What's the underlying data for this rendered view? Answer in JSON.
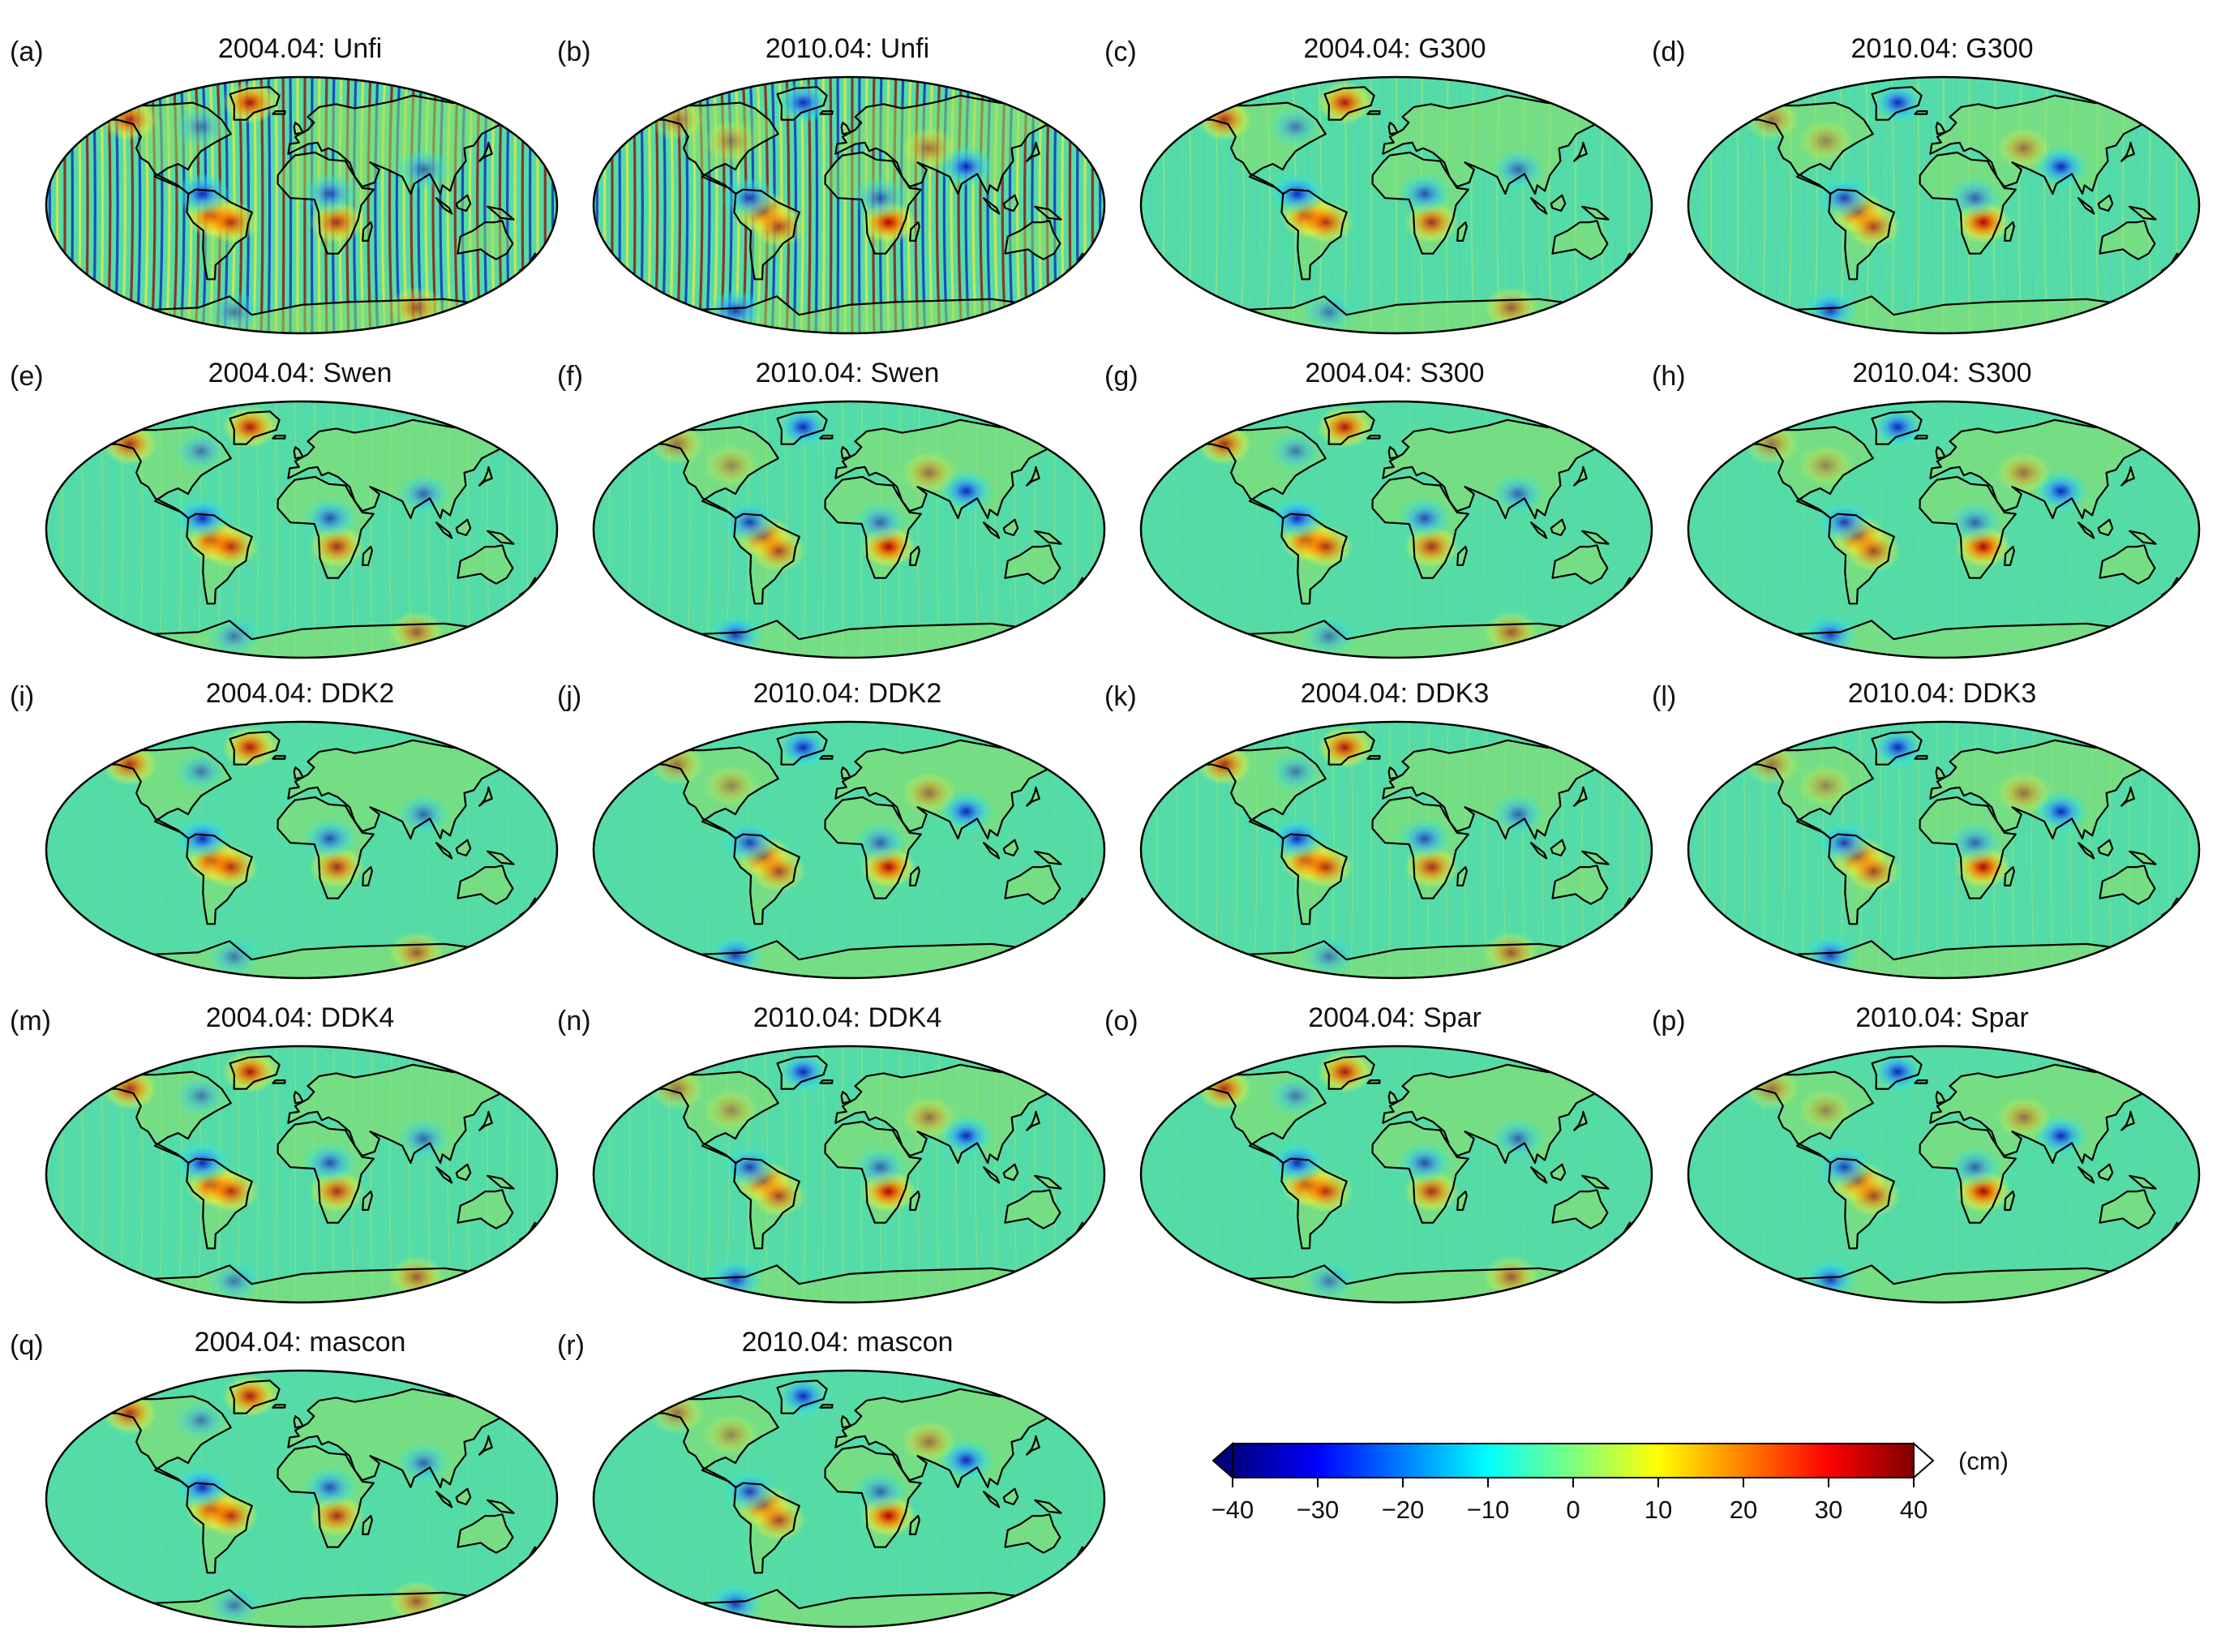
{
  "figure": {
    "panels": [
      {
        "letter": "(a)",
        "title": "2004.04: Unfi",
        "filter": "Unfi",
        "epoch": "2004.04",
        "noise_stripes": "strong"
      },
      {
        "letter": "(b)",
        "title": "2010.04: Unfi",
        "filter": "Unfi",
        "epoch": "2010.04",
        "noise_stripes": "strong"
      },
      {
        "letter": "(c)",
        "title": "2004.04: G300",
        "filter": "G300",
        "epoch": "2004.04",
        "noise_stripes": "moderate"
      },
      {
        "letter": "(d)",
        "title": "2010.04: G300",
        "filter": "G300",
        "epoch": "2010.04",
        "noise_stripes": "moderate"
      },
      {
        "letter": "(e)",
        "title": "2004.04: Swen",
        "filter": "Swen",
        "epoch": "2004.04",
        "noise_stripes": "weak"
      },
      {
        "letter": "(f)",
        "title": "2010.04: Swen",
        "filter": "Swen",
        "epoch": "2010.04",
        "noise_stripes": "weak"
      },
      {
        "letter": "(g)",
        "title": "2004.04: S300",
        "filter": "S300",
        "epoch": "2004.04",
        "noise_stripes": "none"
      },
      {
        "letter": "(h)",
        "title": "2010.04: S300",
        "filter": "S300",
        "epoch": "2010.04",
        "noise_stripes": "none"
      },
      {
        "letter": "(i)",
        "title": "2004.04: DDK2",
        "filter": "DDK2",
        "epoch": "2004.04",
        "noise_stripes": "none"
      },
      {
        "letter": "(j)",
        "title": "2010.04: DDK2",
        "filter": "DDK2",
        "epoch": "2010.04",
        "noise_stripes": "none"
      },
      {
        "letter": "(k)",
        "title": "2004.04: DDK3",
        "filter": "DDK3",
        "epoch": "2004.04",
        "noise_stripes": "weak"
      },
      {
        "letter": "(l)",
        "title": "2010.04: DDK3",
        "filter": "DDK3",
        "epoch": "2010.04",
        "noise_stripes": "weak"
      },
      {
        "letter": "(m)",
        "title": "2004.04: DDK4",
        "filter": "DDK4",
        "epoch": "2004.04",
        "noise_stripes": "weak"
      },
      {
        "letter": "(n)",
        "title": "2010.04: DDK4",
        "filter": "DDK4",
        "epoch": "2010.04",
        "noise_stripes": "weak"
      },
      {
        "letter": "(o)",
        "title": "2004.04: Spar",
        "filter": "Spar",
        "epoch": "2004.04",
        "noise_stripes": "none"
      },
      {
        "letter": "(p)",
        "title": "2010.04: Spar",
        "filter": "Spar",
        "epoch": "2010.04",
        "noise_stripes": "none"
      },
      {
        "letter": "(q)",
        "title": "2004.04: mascon",
        "filter": "mascon",
        "epoch": "2004.04",
        "noise_stripes": "none"
      },
      {
        "letter": "(r)",
        "title": "2010.04: mascon",
        "filter": "mascon",
        "epoch": "2010.04",
        "noise_stripes": "none"
      }
    ],
    "colorbar": {
      "unit": "(cm)",
      "min": -40,
      "max": 40,
      "ticks": [
        "−40",
        "−30",
        "−20",
        "−10",
        "0",
        "10",
        "20",
        "30",
        "40"
      ],
      "extend": "both",
      "colors": [
        "#00007f",
        "#0000ff",
        "#007fff",
        "#00ffff",
        "#7fff7f",
        "#ffff00",
        "#ff7f00",
        "#ff0000",
        "#7f0000"
      ]
    },
    "map": {
      "projection": "Robinson",
      "ocean_color": "#55dca6",
      "coastline_color": "#000000"
    }
  }
}
